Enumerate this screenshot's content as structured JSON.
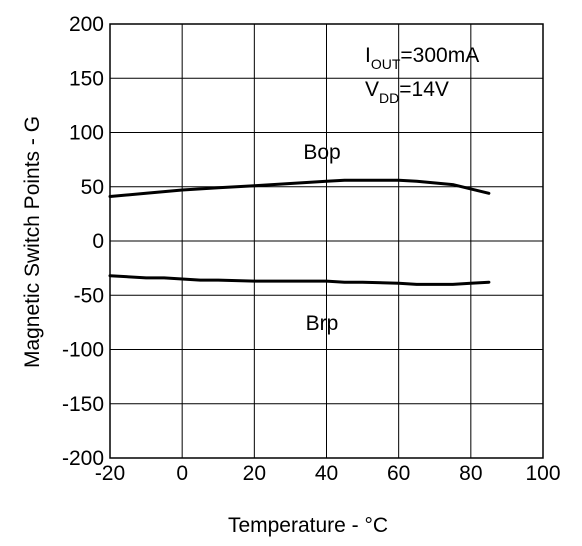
{
  "chart_data": {
    "type": "line",
    "xlabel": "Temperature - °C",
    "ylabel": "Magnetic Switch Points - G",
    "xlim": [
      -20,
      100
    ],
    "ylim": [
      -200,
      200
    ],
    "xticks": [
      -20,
      0,
      20,
      40,
      60,
      80,
      100
    ],
    "yticks": [
      -200,
      -150,
      -100,
      -50,
      0,
      50,
      100,
      150,
      200
    ],
    "xtick_labels": [
      "-20",
      "0",
      "20",
      "40",
      "60",
      "80",
      "100"
    ],
    "ytick_labels": [
      "-200",
      "-150",
      "-100",
      "-50",
      "0",
      "50",
      "100",
      "150",
      "200"
    ],
    "grid": true,
    "conditions": {
      "line1": {
        "base": "I",
        "sub": "OUT",
        "rest": "=300mA"
      },
      "line2": {
        "base": "V",
        "sub": "DD",
        "rest": "=14V"
      }
    },
    "series": [
      {
        "name": "Bop",
        "x": [
          -20,
          -10,
          0,
          10,
          20,
          30,
          40,
          45,
          50,
          60,
          65,
          75,
          80,
          85
        ],
        "values": [
          41,
          44,
          47,
          49,
          51,
          53,
          55,
          56,
          56,
          56,
          55,
          52,
          48,
          44
        ]
      },
      {
        "name": "Brp",
        "x": [
          -20,
          -10,
          -5,
          0,
          5,
          10,
          20,
          30,
          40,
          45,
          50,
          60,
          65,
          75,
          80,
          85
        ],
        "values": [
          -32,
          -34,
          -34,
          -35,
          -36,
          -36,
          -37,
          -37,
          -37,
          -38,
          -38,
          -39,
          -40,
          -40,
          -39,
          -38
        ]
      }
    ]
  }
}
